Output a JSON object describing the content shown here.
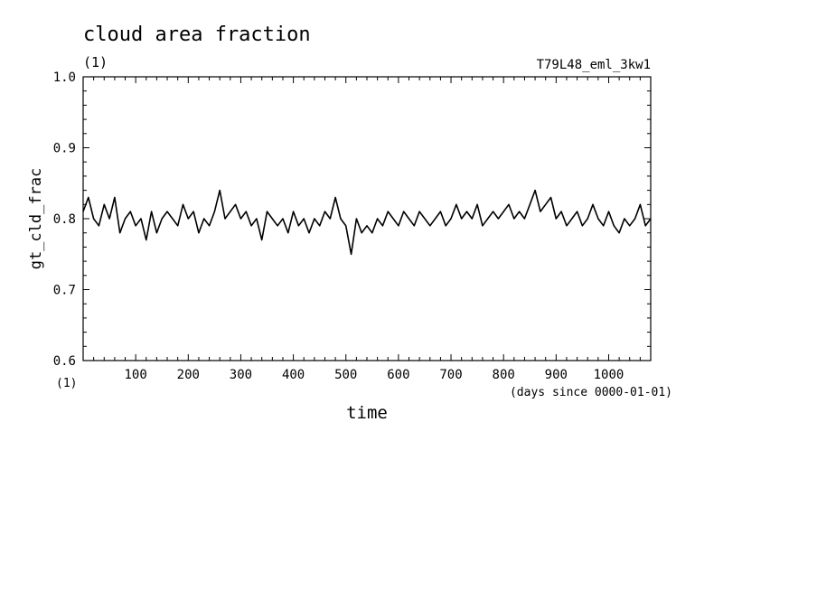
{
  "chart_data": {
    "type": "line",
    "title": "cloud area fraction",
    "title_units": "(1)",
    "subtitle_right": "T79L48_eml_3kw1",
    "ylabel": "gt_cld_frac",
    "xlabel": "time",
    "x_units": "(days since 0000-01-01)",
    "y_units": "(1)",
    "ylim": [
      0.6,
      1.0
    ],
    "xlim": [
      0,
      1080
    ],
    "yticks": [
      "0.6",
      "0.7",
      "0.8",
      "0.9",
      "1.0"
    ],
    "xticks": [
      "100",
      "200",
      "300",
      "400",
      "500",
      "600",
      "700",
      "800",
      "900",
      "1000"
    ],
    "grid": false,
    "series": [
      {
        "x": [
          0,
          10,
          20,
          30,
          40,
          50,
          60,
          70,
          80,
          90,
          100,
          110,
          120,
          130,
          140,
          150,
          160,
          170,
          180,
          190,
          200,
          210,
          220,
          230,
          240,
          250,
          260,
          270,
          280,
          290,
          300,
          310,
          320,
          330,
          340,
          350,
          360,
          370,
          380,
          390,
          400,
          410,
          420,
          430,
          440,
          450,
          460,
          470,
          480,
          490,
          500,
          510,
          520,
          530,
          540,
          550,
          560,
          570,
          580,
          590,
          600,
          610,
          620,
          630,
          640,
          650,
          660,
          670,
          680,
          690,
          700,
          710,
          720,
          730,
          740,
          750,
          760,
          770,
          780,
          790,
          800,
          810,
          820,
          830,
          840,
          850,
          860,
          870,
          880,
          890,
          900,
          910,
          920,
          930,
          940,
          950,
          960,
          970,
          980,
          990,
          1000,
          1010,
          1020,
          1030,
          1040,
          1050,
          1060,
          1070,
          1080
        ],
        "values": [
          0.81,
          0.83,
          0.8,
          0.79,
          0.82,
          0.8,
          0.83,
          0.78,
          0.8,
          0.81,
          0.79,
          0.8,
          0.77,
          0.81,
          0.78,
          0.8,
          0.81,
          0.8,
          0.79,
          0.82,
          0.8,
          0.81,
          0.78,
          0.8,
          0.79,
          0.81,
          0.84,
          0.8,
          0.81,
          0.82,
          0.8,
          0.81,
          0.79,
          0.8,
          0.77,
          0.81,
          0.8,
          0.79,
          0.8,
          0.78,
          0.81,
          0.79,
          0.8,
          0.78,
          0.8,
          0.79,
          0.81,
          0.8,
          0.83,
          0.8,
          0.79,
          0.75,
          0.8,
          0.78,
          0.79,
          0.78,
          0.8,
          0.79,
          0.81,
          0.8,
          0.79,
          0.81,
          0.8,
          0.79,
          0.81,
          0.8,
          0.79,
          0.8,
          0.81,
          0.79,
          0.8,
          0.82,
          0.8,
          0.81,
          0.8,
          0.82,
          0.79,
          0.8,
          0.81,
          0.8,
          0.81,
          0.82,
          0.8,
          0.81,
          0.8,
          0.82,
          0.84,
          0.81,
          0.82,
          0.83,
          0.8,
          0.81,
          0.79,
          0.8,
          0.81,
          0.79,
          0.8,
          0.82,
          0.8,
          0.79,
          0.81,
          0.79,
          0.78,
          0.8,
          0.79,
          0.8,
          0.82,
          0.79,
          0.8
        ]
      }
    ]
  }
}
